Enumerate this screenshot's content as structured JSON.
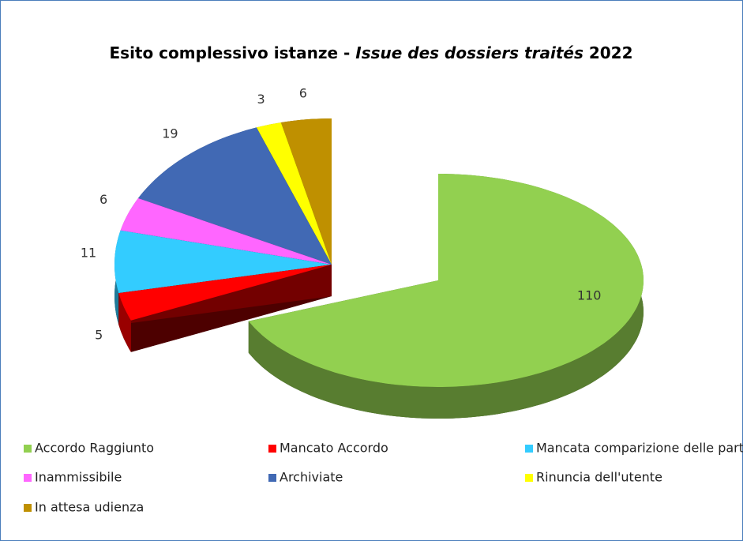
{
  "chart_data": {
    "type": "pie3d",
    "title": [
      "Esito complessivo istanze -",
      "Issue des dossiers traités",
      "2022"
    ],
    "categories": [
      "Accordo Raggiunto",
      "Mancato Accordo",
      "Mancata comparizione delle parti",
      "Inammissibile",
      "Archiviate",
      "Rinuncia dell'utente",
      "In attesa udienza"
    ],
    "values": [
      110,
      5,
      11,
      6,
      19,
      3,
      6
    ],
    "colors": [
      "#92d050",
      "#ff0000",
      "#33ccff",
      "#ff66ff",
      "#4169b4",
      "#ffff00",
      "#bf9000"
    ],
    "legend": "bottom"
  }
}
